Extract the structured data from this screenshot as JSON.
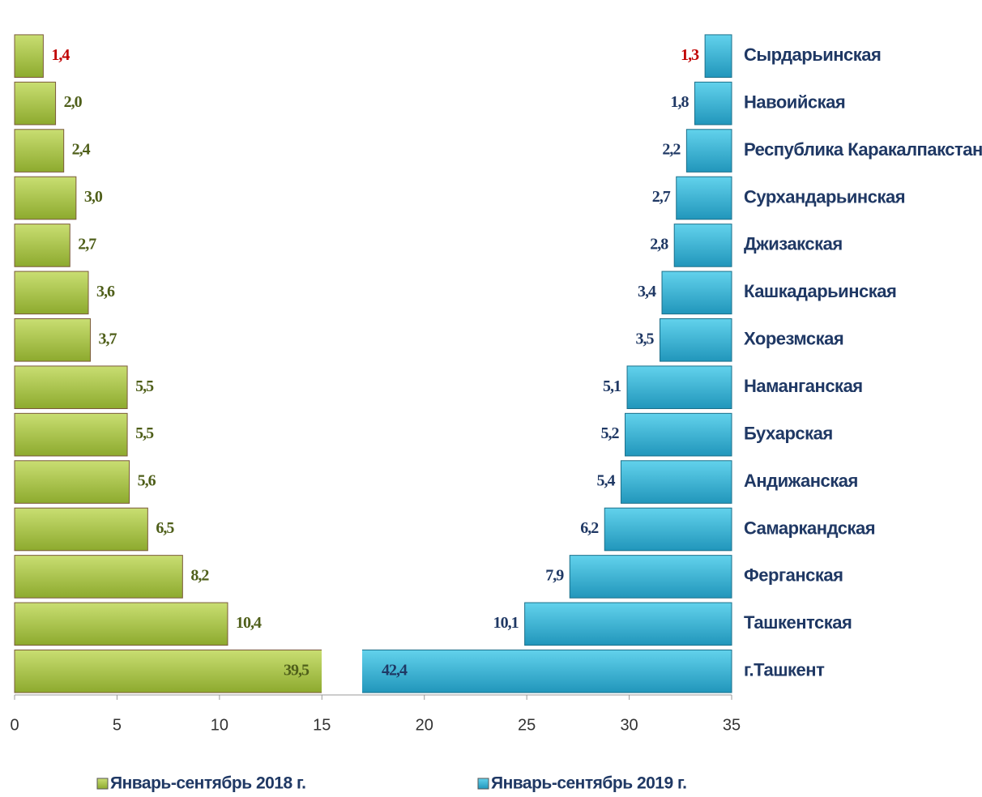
{
  "chart_data": {
    "type": "butterfly_bar",
    "categories": [
      "Сырдарьинская",
      "Навоийская",
      "Республика Каракалпакстан",
      "Сурхандарьинская",
      "Джизакская",
      "Кашкадарьинская",
      "Хорезмская",
      "Наманганская",
      "Бухарская",
      "Андижанская",
      "Самаркандская",
      "Ферганская",
      "Ташкентская",
      "г.Ташкент"
    ],
    "series": [
      {
        "name": "Январь-сентябрь 2018 г.",
        "color": "#9cba3c",
        "values": [
          1.4,
          2.0,
          2.4,
          3.0,
          2.7,
          3.6,
          3.7,
          5.5,
          5.5,
          5.6,
          6.5,
          8.2,
          10.4,
          39.5
        ],
        "value_labels": [
          "1,4",
          "2,0",
          "2,4",
          "3,0",
          "2,7",
          "3,6",
          "3,7",
          "5,5",
          "5,5",
          "5,6",
          "6,5",
          "8,2",
          "10,4",
          "39,5"
        ],
        "value_label_colors": [
          "#c00000",
          "#4f5f1a",
          "#4f5f1a",
          "#4f5f1a",
          "#4f5f1a",
          "#4f5f1a",
          "#4f5f1a",
          "#4f5f1a",
          "#4f5f1a",
          "#4f5f1a",
          "#4f5f1a",
          "#4f5f1a",
          "#4f5f1a",
          "#4f5f1a"
        ]
      },
      {
        "name": "Январь-сентябрь 2019 г.",
        "color": "#2eaacb",
        "values": [
          1.3,
          1.8,
          2.2,
          2.7,
          2.8,
          3.4,
          3.5,
          5.1,
          5.2,
          5.4,
          6.2,
          7.9,
          10.1,
          42.4
        ],
        "value_labels": [
          "1,3",
          "1,8",
          "2,2",
          "2,7",
          "2,8",
          "3,4",
          "3,5",
          "5,1",
          "5,2",
          "5,4",
          "6,2",
          "7,9",
          "10,1",
          "42,4"
        ],
        "value_label_colors": [
          "#c00000",
          "#1f3864",
          "#1f3864",
          "#1f3864",
          "#1f3864",
          "#1f3864",
          "#1f3864",
          "#1f3864",
          "#1f3864",
          "#1f3864",
          "#1f3864",
          "#1f3864",
          "#1f3864",
          "#1f3864"
        ]
      }
    ],
    "xlim": [
      0,
      35
    ],
    "xticks": [
      0,
      5,
      10,
      15,
      20,
      25,
      30,
      35
    ]
  }
}
